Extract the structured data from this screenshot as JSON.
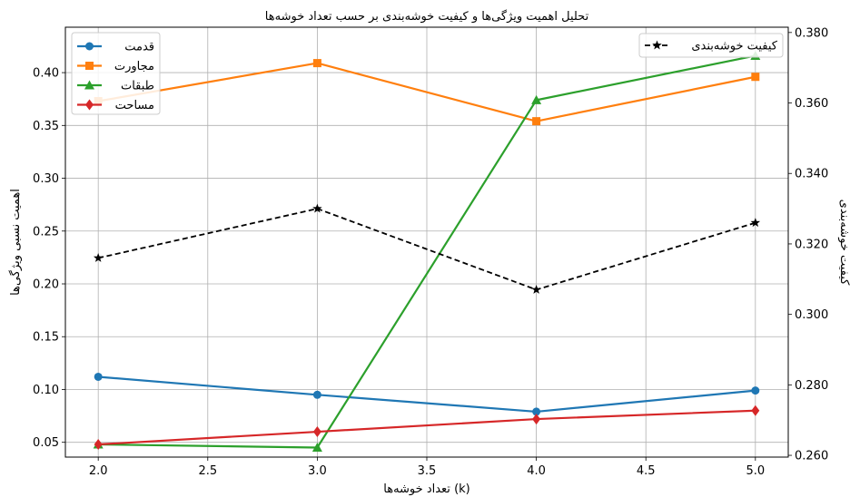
{
  "chart_data": {
    "type": "line",
    "title": "تحلیل اهمیت ویژگی‌ها و کیفیت خوشه‌بندی بر حسب تعداد خوشه‌ها",
    "xlabel": "تعداد خوشه‌ها (k)",
    "ylabel": "اهمیت نسبی ویژگی‌ها",
    "y2label": "کیفیت خوشه‌بندی",
    "x": [
      2.0,
      3.0,
      4.0,
      5.0
    ],
    "xlim": [
      1.85,
      5.15
    ],
    "ylim": [
      0.036,
      0.443
    ],
    "y2lim": [
      0.2595,
      0.3815
    ],
    "xticks": [
      "2.0",
      "2.5",
      "3.0",
      "3.5",
      "4.0",
      "4.5",
      "5.0"
    ],
    "xtick_values": [
      2.0,
      2.5,
      3.0,
      3.5,
      4.0,
      4.5,
      5.0
    ],
    "yticks": [
      "0.05",
      "0.10",
      "0.15",
      "0.20",
      "0.25",
      "0.30",
      "0.35",
      "0.40"
    ],
    "ytick_values": [
      0.05,
      0.1,
      0.15,
      0.2,
      0.25,
      0.3,
      0.35,
      0.4
    ],
    "y2ticks": [
      "0.260",
      "0.280",
      "0.300",
      "0.320",
      "0.340",
      "0.360",
      "0.380"
    ],
    "y2tick_values": [
      0.26,
      0.28,
      0.3,
      0.32,
      0.34,
      0.36,
      0.38
    ],
    "grid": true,
    "series": [
      {
        "name": "قدمت",
        "color": "#1f77b4",
        "marker": "circle",
        "axis": "left",
        "values": [
          0.112,
          0.095,
          0.079,
          0.099
        ]
      },
      {
        "name": "مجاورت",
        "color": "#ff7f0e",
        "marker": "square",
        "axis": "left",
        "values": [
          0.373,
          0.409,
          0.354,
          0.396
        ]
      },
      {
        "name": "طبقات",
        "color": "#2ca02c",
        "marker": "triangle",
        "axis": "left",
        "values": [
          0.048,
          0.045,
          0.374,
          0.416
        ]
      },
      {
        "name": "مساحت",
        "color": "#d62728",
        "marker": "diamond",
        "axis": "left",
        "values": [
          0.048,
          0.06,
          0.072,
          0.08
        ]
      },
      {
        "name": "کیفیت خوشه‌بندی",
        "color": "#000000",
        "marker": "star",
        "axis": "right",
        "dashed": true,
        "values": [
          0.316,
          0.33,
          0.307,
          0.326
        ]
      }
    ],
    "legend_left": "top-left",
    "legend_right": "top-right"
  }
}
